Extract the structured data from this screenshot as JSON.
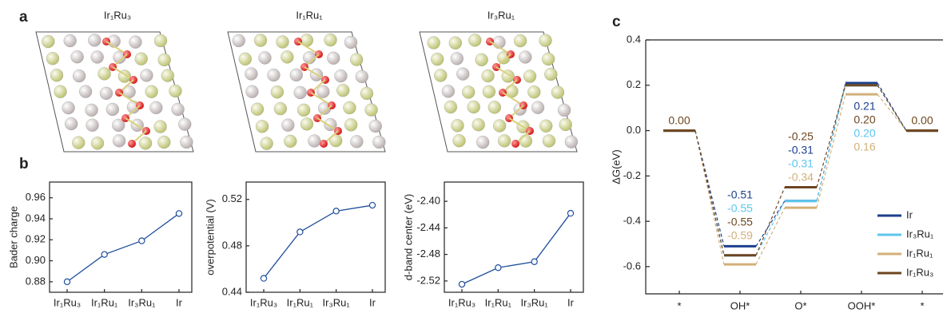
{
  "panel_labels": [
    "a",
    "b",
    "c"
  ],
  "structures": [
    "Ir₁Ru₃",
    "Ir₁Ru₁",
    "Ir₃Ru₁"
  ],
  "chart_data": [
    {
      "type": "line",
      "ylabel": "Bader charge",
      "categories": [
        "Ir₁Ru₃",
        "Ir₁Ru₁",
        "Ir₃Ru₁",
        "Ir"
      ],
      "values": [
        0.88,
        0.906,
        0.919,
        0.945
      ],
      "color": "#1f4e9c",
      "ylim": [
        0.87,
        0.975
      ],
      "yticks": [
        0.88,
        {
          "value": 0.9,
          "label": "0.90"
        },
        0.92,
        0.94,
        0.96
      ]
    },
    {
      "type": "line",
      "ylabel": "overpotential (V)",
      "categories": [
        "Ir₁Ru₃",
        "Ir₁Ru₁",
        "Ir₃Ru₁",
        "Ir"
      ],
      "values": [
        0.452,
        0.492,
        0.51,
        0.515
      ],
      "color": "#1f4e9c",
      "ylim": [
        0.44,
        0.535
      ],
      "yticks": [
        0.44,
        0.48,
        0.52
      ]
    },
    {
      "type": "line",
      "ylabel": "d-band center (eV)",
      "categories": [
        "Ir₁Ru₃",
        "Ir₁Ru₁",
        "Ir₃Ru₁",
        "Ir"
      ],
      "values": [
        -2.525,
        -2.5,
        -2.491,
        -2.418
      ],
      "color": "#1f4e9c",
      "ylim": [
        -2.537,
        -2.371
      ],
      "yticks": [
        -2.52,
        -2.48,
        -2.44,
        {
          "value": -2.4,
          "label": "-2.40"
        }
      ]
    },
    {
      "type": "energy",
      "ylabel": "ΔG(eV)",
      "categories": [
        "*",
        "OH*",
        "O*",
        "OOH*",
        "*"
      ],
      "ylim": [
        -0.72,
        0.4
      ],
      "yticks": [
        -0.6,
        -0.4,
        -0.2,
        {
          "value": 0,
          "label": "0.0"
        },
        0.2,
        0.4
      ],
      "legend": "lower right",
      "series": [
        {
          "name": "Ir",
          "color": "#1d3f8c",
          "values": [
            0,
            -0.51,
            -0.31,
            0.21,
            0
          ],
          "value_labels": [
            null,
            "-0.51",
            "-0.31",
            "0.21",
            null
          ]
        },
        {
          "name": "Ir₃Ru₁",
          "color": "#5cc6ee",
          "values": [
            0,
            -0.55,
            -0.31,
            0.2,
            0
          ],
          "value_labels": [
            null,
            "-0.55",
            "-0.31",
            "0.20",
            null
          ]
        },
        {
          "name": "Ir₁Ru₁",
          "color": "#d2b07a",
          "values": [
            0,
            -0.59,
            -0.34,
            0.16,
            0
          ],
          "value_labels": [
            null,
            "-0.59",
            "-0.34",
            "0.16",
            null
          ]
        },
        {
          "name": "Ir₁Ru₃",
          "color": "#6e4520",
          "values": [
            0,
            -0.55,
            -0.25,
            0.2,
            0
          ],
          "value_labels": [
            "0.00",
            "-0.55",
            "-0.25",
            "0.20",
            "0.00"
          ]
        }
      ]
    }
  ]
}
